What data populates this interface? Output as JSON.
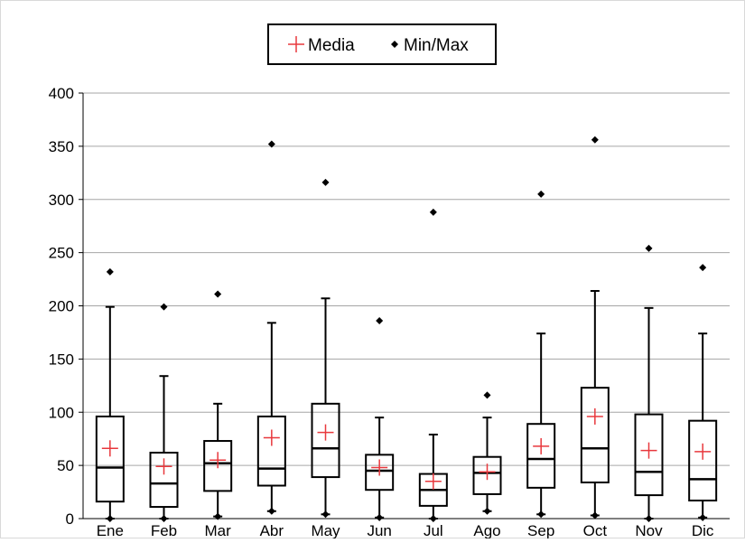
{
  "chart_data": {
    "type": "box",
    "title": "",
    "xlabel": "",
    "ylabel": "",
    "ylim": [
      0,
      400
    ],
    "yticks": [
      0,
      50,
      100,
      150,
      200,
      250,
      300,
      350,
      400
    ],
    "grid": true,
    "legend_position": "top-center",
    "legend": {
      "mean_label": "Media",
      "minmax_label": "Min/Max"
    },
    "colors": {
      "mean": "#e8383d",
      "box": "#000000",
      "grid": "#a6a6a6"
    },
    "categories": [
      "Ene",
      "Feb",
      "Mar",
      "Abr",
      "May",
      "Jun",
      "Jul",
      "Ago",
      "Sep",
      "Oct",
      "Nov",
      "Dic"
    ],
    "boxes": [
      {
        "category": "Ene",
        "min": 0,
        "whisker_low": 0,
        "q1": 16,
        "median": 48,
        "q3": 96,
        "whisker_high": 199,
        "max": 232,
        "mean": 66
      },
      {
        "category": "Feb",
        "min": 0,
        "whisker_low": 0,
        "q1": 11,
        "median": 33,
        "q3": 62,
        "whisker_high": 134,
        "max": 199,
        "mean": 49
      },
      {
        "category": "Mar",
        "min": 2,
        "whisker_low": 2,
        "q1": 26,
        "median": 52,
        "q3": 73,
        "whisker_high": 108,
        "max": 211,
        "mean": 55
      },
      {
        "category": "Abr",
        "min": 7,
        "whisker_low": 7,
        "q1": 31,
        "median": 47,
        "q3": 96,
        "whisker_high": 184,
        "max": 352,
        "mean": 76
      },
      {
        "category": "May",
        "min": 4,
        "whisker_low": 4,
        "q1": 39,
        "median": 66,
        "q3": 108,
        "whisker_high": 207,
        "max": 316,
        "mean": 81
      },
      {
        "category": "Jun",
        "min": 1,
        "whisker_low": 1,
        "q1": 27,
        "median": 45,
        "q3": 60,
        "whisker_high": 95,
        "max": 186,
        "mean": 48
      },
      {
        "category": "Jul",
        "min": 0,
        "whisker_low": 0,
        "q1": 12,
        "median": 27,
        "q3": 42,
        "whisker_high": 79,
        "max": 288,
        "mean": 35
      },
      {
        "category": "Ago",
        "min": 7,
        "whisker_low": 7,
        "q1": 23,
        "median": 43,
        "q3": 58,
        "whisker_high": 95,
        "max": 116,
        "mean": 44
      },
      {
        "category": "Sep",
        "min": 4,
        "whisker_low": 4,
        "q1": 29,
        "median": 56,
        "q3": 89,
        "whisker_high": 174,
        "max": 305,
        "mean": 68
      },
      {
        "category": "Oct",
        "min": 3,
        "whisker_low": 3,
        "q1": 34,
        "median": 66,
        "q3": 123,
        "whisker_high": 214,
        "max": 356,
        "mean": 96
      },
      {
        "category": "Nov",
        "min": 0,
        "whisker_low": 0,
        "q1": 22,
        "median": 44,
        "q3": 98,
        "whisker_high": 198,
        "max": 254,
        "mean": 64
      },
      {
        "category": "Dic",
        "min": 1,
        "whisker_low": 1,
        "q1": 17,
        "median": 37,
        "q3": 92,
        "whisker_high": 174,
        "max": 236,
        "mean": 63
      }
    ]
  }
}
